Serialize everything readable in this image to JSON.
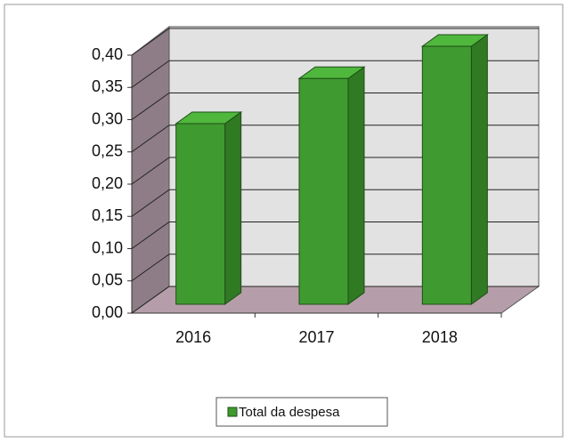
{
  "chart_data": {
    "type": "bar3d",
    "categories": [
      "2016",
      "2017",
      "2018"
    ],
    "series": [
      {
        "name": "Total da despesa",
        "color": "#3f9b2f",
        "values": [
          0.28,
          0.35,
          0.4
        ]
      }
    ],
    "ylim": [
      0,
      0.4
    ],
    "yticks": [
      {
        "value": 0,
        "label": "0,00"
      },
      {
        "value": 0.05,
        "label": "0,05"
      },
      {
        "value": 0.1,
        "label": "0,10"
      },
      {
        "value": 0.15,
        "label": "0,15"
      },
      {
        "value": 0.2,
        "label": "0,20"
      },
      {
        "value": 0.25,
        "label": "0,25"
      },
      {
        "value": 0.3,
        "label": "0,30"
      },
      {
        "value": 0.35,
        "label": "0,35"
      },
      {
        "value": 0.4,
        "label": "0,40"
      }
    ],
    "grid": true,
    "legend": "bottom"
  }
}
